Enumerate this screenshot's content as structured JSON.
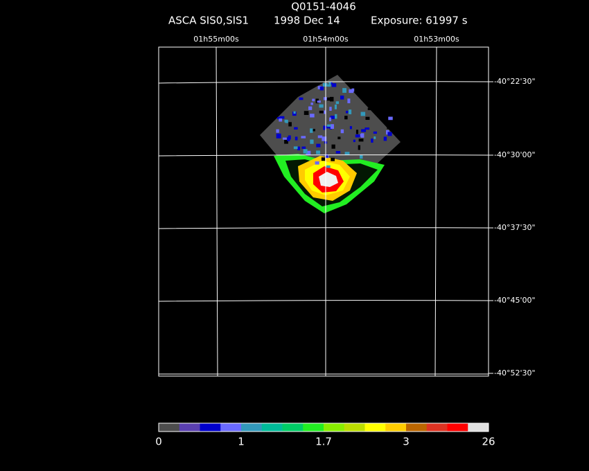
{
  "title": "Q0151-4046",
  "subtitle": {
    "instrument": "ASCA SIS0,SIS1",
    "date": "1998 Dec 14",
    "exposure": "Exposure: 61997 s"
  },
  "ra_labels": [
    "01h55m00s",
    "01h54m00s",
    "01h53m00s"
  ],
  "dec_labels": [
    "-40°22'30\"",
    "-40°30'00\"",
    "-40°37'30\"",
    "-40°45'00\"",
    "-40°52'30\""
  ],
  "colorbar": {
    "colors": [
      "#4d4d4d",
      "#5a3fb0",
      "#0000cc",
      "#6a6aff",
      "#3399bb",
      "#00bb99",
      "#00cc66",
      "#22ee22",
      "#88ee00",
      "#bbdd00",
      "#ffff00",
      "#ffcc00",
      "#bb6600",
      "#dd3322",
      "#ff0000",
      "#e0e0e0"
    ],
    "labels": [
      "0",
      "1",
      "1.7",
      "3",
      "26"
    ]
  }
}
